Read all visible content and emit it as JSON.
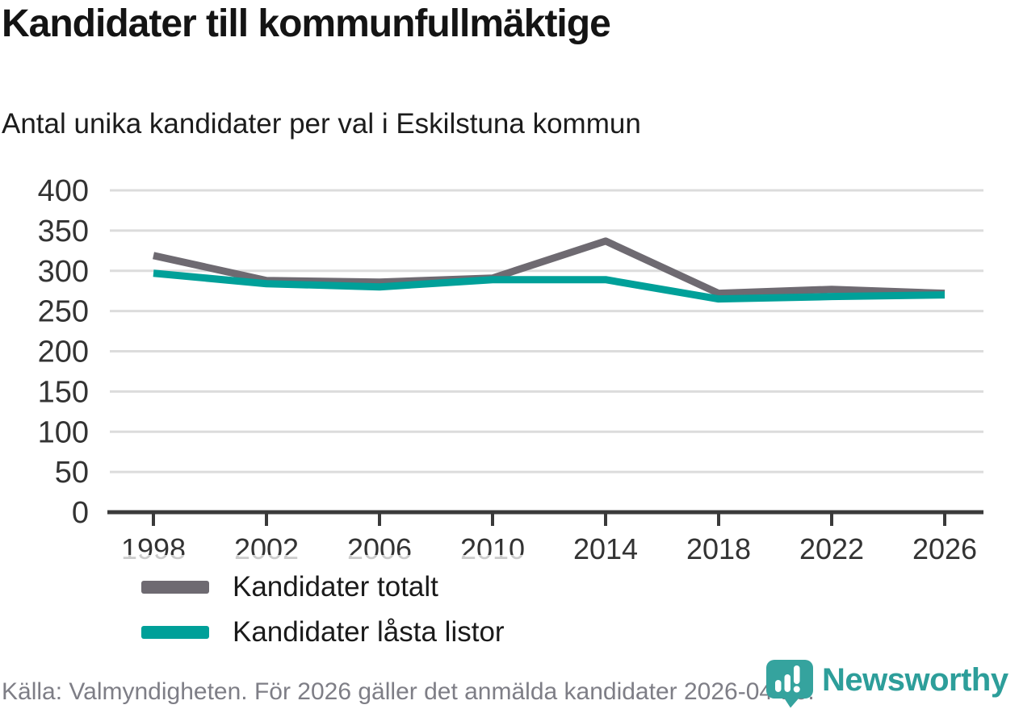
{
  "header": {
    "title": "Kandidater till kommunfullmäktige",
    "subtitle": "Antal unika kandidater per val i Eskilstuna kommun"
  },
  "chart_data": {
    "type": "line",
    "title": "Kandidater till kommunfullmäktige",
    "subtitle": "Antal unika kandidater per val i Eskilstuna kommun",
    "x": [
      1998,
      2002,
      2006,
      2010,
      2014,
      2018,
      2022,
      2026
    ],
    "series": [
      {
        "name": "Kandidater totalt",
        "color": "#6e6a71",
        "values": [
          319,
          288,
          286,
          291,
          337,
          272,
          277,
          272
        ]
      },
      {
        "name": "Kandidater låsta listor",
        "color": "#00a099",
        "values": [
          297,
          284,
          280,
          289,
          289,
          265,
          268,
          270
        ]
      }
    ],
    "xlabel": "",
    "ylabel": "",
    "ylim": [
      0,
      400
    ],
    "yticks": [
      0,
      50,
      100,
      150,
      200,
      250,
      300,
      350,
      400
    ],
    "grid": "horizontal",
    "legend_position": "inside-lower-left"
  },
  "legend": {
    "items": [
      {
        "label": "Kandidater totalt",
        "color": "#6e6a71"
      },
      {
        "label": "Kandidater låsta listor",
        "color": "#00a099"
      }
    ]
  },
  "footer": {
    "source": "Källa: Valmyndigheten. För 2026 gäller det anmälda kandidater 2026-04-10.",
    "brand": "Newsworthy"
  },
  "colors": {
    "series_gray": "#6e6a71",
    "series_teal": "#00a099",
    "brand_icon_teal": "#35a39e",
    "brand_text_teal": "#2d9e9a",
    "grid": "#dcdcdc",
    "axis": "#3a3a3a",
    "tick_text": "#333333",
    "muted_text": "#7e7e86"
  }
}
